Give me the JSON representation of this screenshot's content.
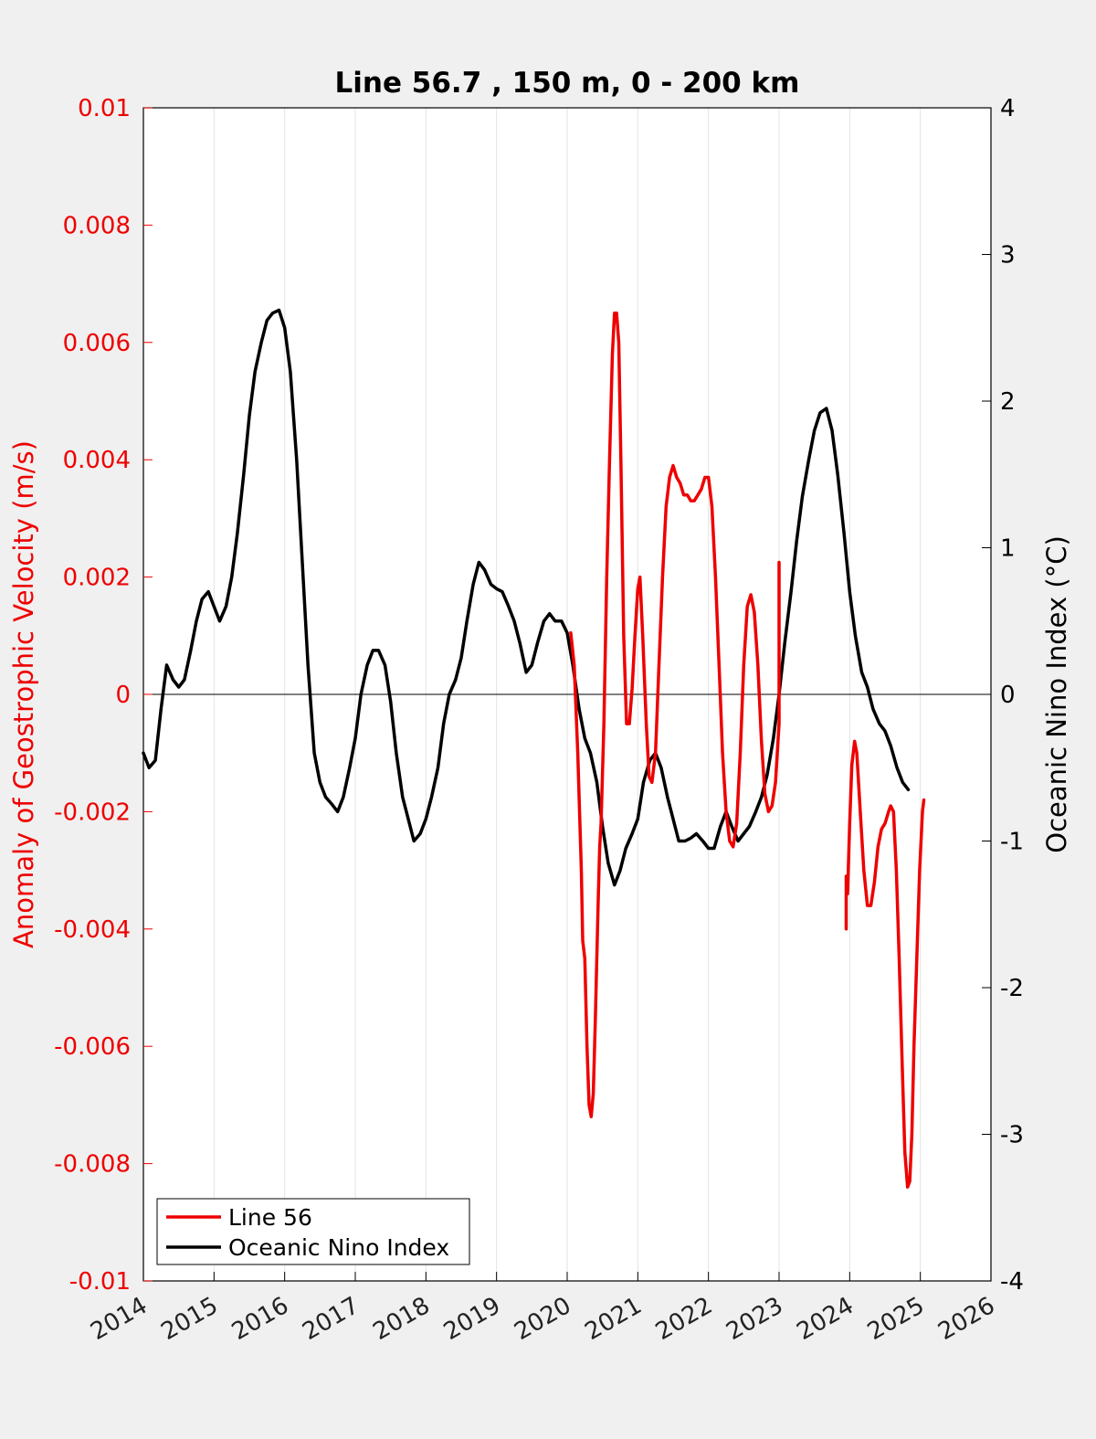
{
  "chart_data": {
    "type": "line",
    "title": "Line 56.7 , 150 m, 0 - 200 km",
    "xlabel": "",
    "ylabel_left": "Anomaly of Geostrophic Velocity (m/s)",
    "ylabel_right": "Oceanic Nino Index (°C)",
    "xlim": [
      2014,
      2026
    ],
    "ylim_left": [
      -0.01,
      0.01
    ],
    "ylim_right": [
      -4,
      4
    ],
    "x_ticks": [
      "2014",
      "2015",
      "2016",
      "2017",
      "2018",
      "2019",
      "2020",
      "2021",
      "2022",
      "2023",
      "2024",
      "2025",
      "2026"
    ],
    "y_left_ticks": [
      "-0.01",
      "-0.008",
      "-0.006",
      "-0.004",
      "-0.002",
      "0",
      "0.002",
      "0.004",
      "0.006",
      "0.008",
      "0.01"
    ],
    "y_right_ticks": [
      "-4",
      "-3",
      "-2",
      "-1",
      "0",
      "1",
      "2",
      "3",
      "4"
    ],
    "grid": "vertical",
    "zero_line": true,
    "legend_position": "bottom-left",
    "colors": {
      "line56": "#ee0000",
      "oni": "#000000",
      "left_axis": "#ee0000",
      "right_axis": "#000000"
    },
    "series": [
      {
        "name": "Line 56",
        "axis": "left",
        "segments": [
          [
            [
              2020.05,
              0.00105
            ],
            [
              2020.1,
              0.0005
            ],
            [
              2020.15,
              -0.001
            ],
            [
              2020.2,
              -0.003
            ],
            [
              2020.22,
              -0.0042
            ],
            [
              2020.25,
              -0.0045
            ],
            [
              2020.28,
              -0.006
            ],
            [
              2020.31,
              -0.007
            ],
            [
              2020.34,
              -0.0072
            ],
            [
              2020.37,
              -0.0068
            ],
            [
              2020.4,
              -0.0055
            ],
            [
              2020.44,
              -0.0035
            ],
            [
              2020.46,
              -0.0026
            ],
            [
              2020.48,
              -0.0022
            ],
            [
              2020.52,
              -0.0005
            ],
            [
              2020.56,
              0.002
            ],
            [
              2020.6,
              0.004
            ],
            [
              2020.64,
              0.0058
            ],
            [
              2020.67,
              0.0065
            ],
            [
              2020.7,
              0.0065
            ],
            [
              2020.73,
              0.006
            ],
            [
              2020.76,
              0.004
            ],
            [
              2020.8,
              0.001
            ],
            [
              2020.84,
              -0.0005
            ],
            [
              2020.88,
              -0.0005
            ],
            [
              2020.92,
              0.0001
            ],
            [
              2020.96,
              0.001
            ],
            [
              2021.0,
              0.0018
            ],
            [
              2021.03,
              0.002
            ],
            [
              2021.07,
              0.001
            ],
            [
              2021.12,
              -0.0005
            ],
            [
              2021.16,
              -0.0014
            ],
            [
              2021.2,
              -0.0015
            ],
            [
              2021.25,
              -0.001
            ],
            [
              2021.3,
              0.0005
            ],
            [
              2021.35,
              0.002
            ],
            [
              2021.4,
              0.0032
            ],
            [
              2021.45,
              0.0037
            ],
            [
              2021.5,
              0.0039
            ],
            [
              2021.55,
              0.0037
            ],
            [
              2021.6,
              0.0036
            ],
            [
              2021.65,
              0.0034
            ],
            [
              2021.7,
              0.0034
            ],
            [
              2021.75,
              0.0033
            ],
            [
              2021.8,
              0.0033
            ],
            [
              2021.85,
              0.0034
            ],
            [
              2021.9,
              0.0035
            ],
            [
              2021.95,
              0.0037
            ],
            [
              2022.0,
              0.0037
            ],
            [
              2022.05,
              0.0032
            ],
            [
              2022.1,
              0.002
            ],
            [
              2022.15,
              0.0005
            ],
            [
              2022.2,
              -0.001
            ],
            [
              2022.25,
              -0.002
            ],
            [
              2022.3,
              -0.0025
            ],
            [
              2022.35,
              -0.0026
            ],
            [
              2022.4,
              -0.0022
            ],
            [
              2022.45,
              -0.001
            ],
            [
              2022.5,
              0.0005
            ],
            [
              2022.55,
              0.0015
            ],
            [
              2022.6,
              0.0017
            ],
            [
              2022.65,
              0.0014
            ],
            [
              2022.7,
              0.0005
            ],
            [
              2022.75,
              -0.0008
            ],
            [
              2022.8,
              -0.0017
            ],
            [
              2022.85,
              -0.002
            ],
            [
              2022.9,
              -0.0019
            ],
            [
              2022.95,
              -0.0015
            ],
            [
              2023.0,
              -0.0005
            ],
            [
              2023.0,
              0.00225
            ]
          ],
          [
            [
              2023.95,
              -0.004
            ],
            [
              2023.95,
              -0.0031
            ],
            [
              2023.97,
              -0.0034
            ],
            [
              2024.0,
              -0.0022
            ],
            [
              2024.03,
              -0.0012
            ],
            [
              2024.07,
              -0.0008
            ],
            [
              2024.1,
              -0.001
            ],
            [
              2024.15,
              -0.002
            ],
            [
              2024.2,
              -0.003
            ],
            [
              2024.25,
              -0.0036
            ],
            [
              2024.3,
              -0.0036
            ],
            [
              2024.35,
              -0.0032
            ],
            [
              2024.4,
              -0.0026
            ],
            [
              2024.45,
              -0.0023
            ],
            [
              2024.5,
              -0.0022
            ],
            [
              2024.55,
              -0.002
            ],
            [
              2024.58,
              -0.0019
            ],
            [
              2024.62,
              -0.002
            ],
            [
              2024.66,
              -0.003
            ],
            [
              2024.7,
              -0.0045
            ],
            [
              2024.74,
              -0.0062
            ],
            [
              2024.78,
              -0.0078
            ],
            [
              2024.82,
              -0.0084
            ],
            [
              2024.85,
              -0.0083
            ],
            [
              2024.88,
              -0.0075
            ],
            [
              2024.91,
              -0.006
            ],
            [
              2024.95,
              -0.0045
            ],
            [
              2024.99,
              -0.003
            ],
            [
              2025.03,
              -0.002
            ],
            [
              2025.05,
              -0.0018
            ]
          ]
        ]
      },
      {
        "name": "Oceanic Nino Index",
        "axis": "right",
        "points": [
          [
            2014.0,
            -0.4
          ],
          [
            2014.08,
            -0.5
          ],
          [
            2014.17,
            -0.45
          ],
          [
            2014.25,
            -0.1
          ],
          [
            2014.33,
            0.2
          ],
          [
            2014.42,
            0.1
          ],
          [
            2014.5,
            0.05
          ],
          [
            2014.58,
            0.1
          ],
          [
            2014.67,
            0.3
          ],
          [
            2014.75,
            0.5
          ],
          [
            2014.83,
            0.65
          ],
          [
            2014.92,
            0.7
          ],
          [
            2015.0,
            0.6
          ],
          [
            2015.08,
            0.5
          ],
          [
            2015.17,
            0.6
          ],
          [
            2015.25,
            0.8
          ],
          [
            2015.33,
            1.1
          ],
          [
            2015.42,
            1.5
          ],
          [
            2015.5,
            1.9
          ],
          [
            2015.58,
            2.2
          ],
          [
            2015.67,
            2.4
          ],
          [
            2015.75,
            2.55
          ],
          [
            2015.83,
            2.6
          ],
          [
            2015.92,
            2.62
          ],
          [
            2016.0,
            2.5
          ],
          [
            2016.08,
            2.2
          ],
          [
            2016.17,
            1.6
          ],
          [
            2016.25,
            0.9
          ],
          [
            2016.33,
            0.2
          ],
          [
            2016.42,
            -0.4
          ],
          [
            2016.5,
            -0.6
          ],
          [
            2016.58,
            -0.7
          ],
          [
            2016.67,
            -0.75
          ],
          [
            2016.75,
            -0.8
          ],
          [
            2016.83,
            -0.7
          ],
          [
            2016.92,
            -0.5
          ],
          [
            2017.0,
            -0.3
          ],
          [
            2017.08,
            0.0
          ],
          [
            2017.17,
            0.2
          ],
          [
            2017.25,
            0.3
          ],
          [
            2017.33,
            0.3
          ],
          [
            2017.42,
            0.2
          ],
          [
            2017.5,
            -0.05
          ],
          [
            2017.58,
            -0.4
          ],
          [
            2017.67,
            -0.7
          ],
          [
            2017.75,
            -0.85
          ],
          [
            2017.83,
            -1.0
          ],
          [
            2017.92,
            -0.95
          ],
          [
            2018.0,
            -0.85
          ],
          [
            2018.08,
            -0.7
          ],
          [
            2018.17,
            -0.5
          ],
          [
            2018.25,
            -0.2
          ],
          [
            2018.33,
            0.0
          ],
          [
            2018.42,
            0.1
          ],
          [
            2018.5,
            0.25
          ],
          [
            2018.58,
            0.5
          ],
          [
            2018.67,
            0.75
          ],
          [
            2018.75,
            0.9
          ],
          [
            2018.83,
            0.85
          ],
          [
            2018.92,
            0.75
          ],
          [
            2019.0,
            0.72
          ],
          [
            2019.08,
            0.7
          ],
          [
            2019.17,
            0.6
          ],
          [
            2019.25,
            0.5
          ],
          [
            2019.33,
            0.35
          ],
          [
            2019.42,
            0.15
          ],
          [
            2019.5,
            0.2
          ],
          [
            2019.58,
            0.35
          ],
          [
            2019.67,
            0.5
          ],
          [
            2019.75,
            0.55
          ],
          [
            2019.83,
            0.5
          ],
          [
            2019.92,
            0.5
          ],
          [
            2020.0,
            0.42
          ],
          [
            2020.08,
            0.2
          ],
          [
            2020.17,
            -0.1
          ],
          [
            2020.25,
            -0.3
          ],
          [
            2020.33,
            -0.4
          ],
          [
            2020.42,
            -0.6
          ],
          [
            2020.5,
            -0.9
          ],
          [
            2020.58,
            -1.15
          ],
          [
            2020.67,
            -1.3
          ],
          [
            2020.75,
            -1.2
          ],
          [
            2020.83,
            -1.05
          ],
          [
            2020.92,
            -0.95
          ],
          [
            2021.0,
            -0.85
          ],
          [
            2021.08,
            -0.6
          ],
          [
            2021.17,
            -0.45
          ],
          [
            2021.25,
            -0.4
          ],
          [
            2021.33,
            -0.5
          ],
          [
            2021.42,
            -0.7
          ],
          [
            2021.5,
            -0.85
          ],
          [
            2021.58,
            -1.0
          ],
          [
            2021.67,
            -1.0
          ],
          [
            2021.75,
            -0.98
          ],
          [
            2021.83,
            -0.95
          ],
          [
            2021.92,
            -1.0
          ],
          [
            2022.0,
            -1.05
          ],
          [
            2022.08,
            -1.05
          ],
          [
            2022.17,
            -0.9
          ],
          [
            2022.25,
            -0.8
          ],
          [
            2022.33,
            -0.9
          ],
          [
            2022.42,
            -1.0
          ],
          [
            2022.5,
            -0.95
          ],
          [
            2022.58,
            -0.9
          ],
          [
            2022.67,
            -0.8
          ],
          [
            2022.75,
            -0.7
          ],
          [
            2022.83,
            -0.55
          ],
          [
            2022.92,
            -0.3
          ],
          [
            2023.0,
            0.0
          ],
          [
            2023.08,
            0.35
          ],
          [
            2023.17,
            0.7
          ],
          [
            2023.25,
            1.05
          ],
          [
            2023.33,
            1.35
          ],
          [
            2023.42,
            1.6
          ],
          [
            2023.5,
            1.8
          ],
          [
            2023.58,
            1.92
          ],
          [
            2023.67,
            1.95
          ],
          [
            2023.75,
            1.8
          ],
          [
            2023.83,
            1.5
          ],
          [
            2023.92,
            1.1
          ],
          [
            2024.0,
            0.7
          ],
          [
            2024.08,
            0.4
          ],
          [
            2024.17,
            0.15
          ],
          [
            2024.25,
            0.05
          ],
          [
            2024.33,
            -0.1
          ],
          [
            2024.42,
            -0.2
          ],
          [
            2024.5,
            -0.25
          ],
          [
            2024.58,
            -0.35
          ],
          [
            2024.67,
            -0.5
          ],
          [
            2024.75,
            -0.6
          ],
          [
            2024.83,
            -0.65
          ]
        ]
      }
    ]
  }
}
